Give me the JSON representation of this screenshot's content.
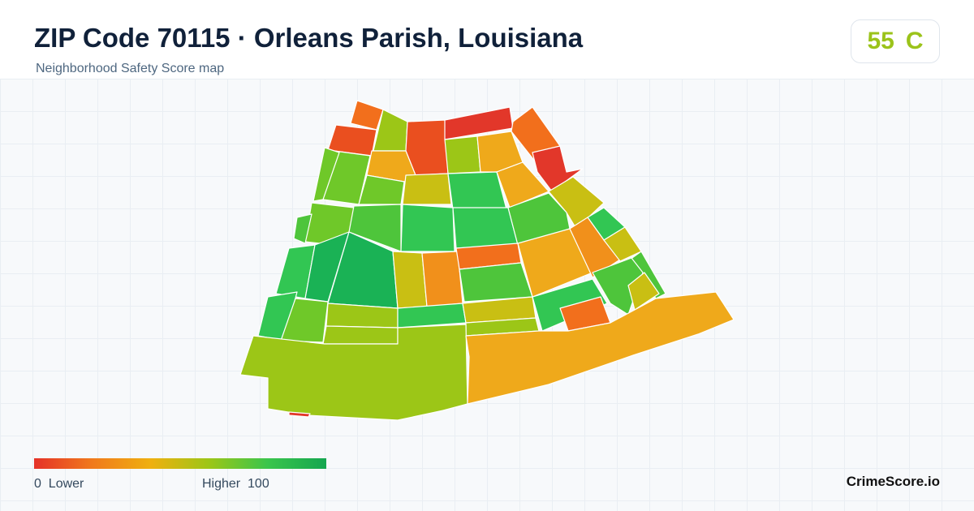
{
  "header": {
    "title": "ZIP Code 70115 · Orleans Parish, Louisiana",
    "subtitle": "Neighborhood Safety Score map"
  },
  "score": {
    "value": "55",
    "grade": "C",
    "color": "#9bc31a"
  },
  "legend": {
    "low_value": "0",
    "low_label": "Lower",
    "high_label": "Higher",
    "high_value": "100",
    "gradient_colors": [
      "#e53228",
      "#f07a1c",
      "#efb00f",
      "#9cc617",
      "#3ac54c",
      "#15a650"
    ]
  },
  "map": {
    "stroke_color": "#ffffff",
    "palette": {
      "red": "#e2372a",
      "red_orange": "#ea4f1f",
      "orange": "#f26f1c",
      "orange_amber": "#f1901b",
      "amber": "#efa91b",
      "olive_yellow": "#c9bf13",
      "yellow_green": "#9cc617",
      "light_green": "#6fc829",
      "green": "#4ec53b",
      "bright_green": "#32c653",
      "deep_green": "#1ab255"
    }
  },
  "brand": "CrimeScore.io"
}
